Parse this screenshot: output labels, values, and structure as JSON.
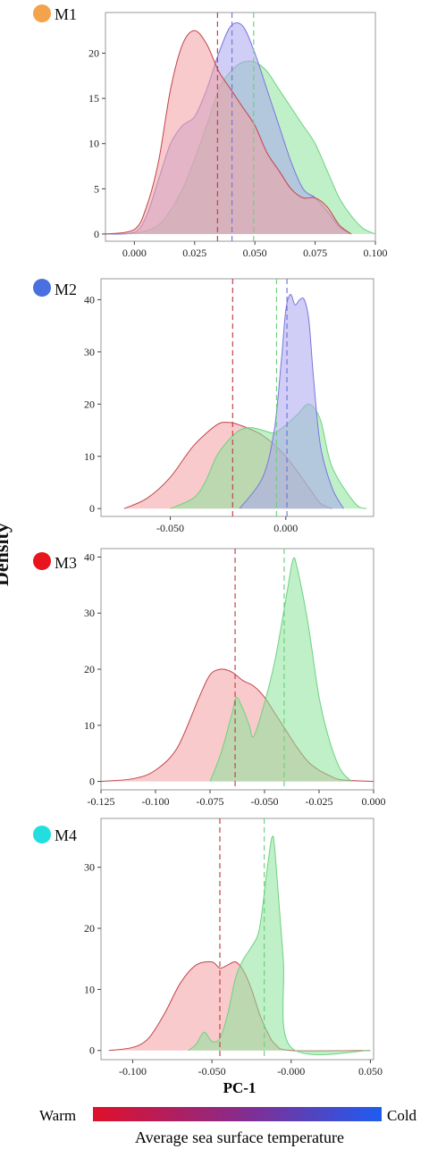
{
  "ylabel": "Density",
  "xlabel": "PC-1",
  "colorbar": {
    "warm_label": "Warm",
    "cold_label": "Cold",
    "title": "Average sea surface temperature",
    "colors": [
      "#e0102a",
      "#8a2a8a",
      "#1e5cf2"
    ]
  },
  "chart_data": [
    {
      "type": "area",
      "name": "M1",
      "marker_color": "#f4a24c",
      "xlim": [
        -0.012,
        0.1
      ],
      "ylim": [
        -0.8,
        24.5
      ],
      "xticks": [
        0.0,
        0.025,
        0.05,
        0.075,
        0.1
      ],
      "xtick_labels": [
        "0.000",
        "0.025",
        "0.050",
        "0.075",
        "0.100"
      ],
      "yticks": [
        0,
        5,
        10,
        15,
        20
      ],
      "yticklabels": [
        "0",
        "5",
        "10",
        "15",
        "20"
      ],
      "series": [
        {
          "name": "green",
          "color": "#8be39a",
          "edge": "#6fd180",
          "mean": 0.0495,
          "x": [
            -0.002,
            0.01,
            0.02,
            0.03,
            0.035,
            0.04,
            0.045,
            0.05,
            0.055,
            0.06,
            0.065,
            0.07,
            0.075,
            0.08,
            0.085,
            0.09,
            0.095,
            0.1
          ],
          "y": [
            0,
            1.0,
            5.0,
            12.0,
            16.0,
            18.0,
            19.0,
            19.0,
            18.0,
            16.0,
            14.0,
            12.0,
            10.0,
            7.0,
            4.0,
            2.0,
            0.6,
            0
          ]
        },
        {
          "name": "blue",
          "color": "#a9a5ef",
          "edge": "#7a76dd",
          "mean": 0.0405,
          "x": [
            -0.012,
            0.0,
            0.005,
            0.01,
            0.015,
            0.02,
            0.025,
            0.03,
            0.035,
            0.04,
            0.045,
            0.05,
            0.055,
            0.06,
            0.065,
            0.07,
            0.075,
            0.08,
            0.085,
            0.09
          ],
          "y": [
            0,
            0.2,
            2.0,
            6.0,
            10.0,
            12.0,
            13.0,
            16.0,
            20.0,
            23.0,
            23.0,
            20.0,
            16.0,
            12.0,
            8.0,
            5.0,
            4.0,
            2.5,
            0.8,
            0
          ]
        },
        {
          "name": "red",
          "color": "#f49ea0",
          "edge": "#c0444c",
          "mean": 0.0345,
          "x": [
            -0.012,
            0.0,
            0.005,
            0.01,
            0.015,
            0.02,
            0.025,
            0.03,
            0.035,
            0.04,
            0.045,
            0.05,
            0.055,
            0.06,
            0.065,
            0.07,
            0.075,
            0.08,
            0.085,
            0.09
          ],
          "y": [
            0,
            0.5,
            3.0,
            8.0,
            16.0,
            21.0,
            22.5,
            21.0,
            18.0,
            16.0,
            14.0,
            12.0,
            9.0,
            7.0,
            5.0,
            4.0,
            4.0,
            3.0,
            1.0,
            0
          ]
        }
      ]
    },
    {
      "type": "area",
      "name": "M2",
      "marker_color": "#4a6fe0",
      "xlim": [
        -0.08,
        0.038
      ],
      "ylim": [
        -1.5,
        44
      ],
      "xticks": [
        -0.05,
        0.0
      ],
      "xtick_labels": [
        "-0.050",
        "0.000"
      ],
      "yticks": [
        0,
        10,
        20,
        30,
        40
      ],
      "yticklabels": [
        "0",
        "10",
        "20",
        "30",
        "40"
      ],
      "series": [
        {
          "name": "red",
          "color": "#f49ea0",
          "edge": "#c0444c",
          "mean": -0.023,
          "x": [
            -0.07,
            -0.06,
            -0.05,
            -0.04,
            -0.03,
            -0.025,
            -0.02,
            -0.01,
            0.0,
            0.01,
            0.015,
            0.02
          ],
          "y": [
            0,
            2.0,
            6.0,
            12.0,
            16.0,
            16.5,
            16.0,
            14.0,
            10.0,
            4.0,
            1.0,
            0
          ]
        },
        {
          "name": "green",
          "color": "#8be39a",
          "edge": "#6fd180",
          "mean": -0.004,
          "x": [
            -0.05,
            -0.04,
            -0.035,
            -0.03,
            -0.025,
            -0.02,
            -0.015,
            -0.01,
            -0.005,
            0.0,
            0.005,
            0.01,
            0.015,
            0.02,
            0.03,
            0.035
          ],
          "y": [
            0,
            2.0,
            5.0,
            10.0,
            13.0,
            15.0,
            15.5,
            15.0,
            14.5,
            16.0,
            18.0,
            20.0,
            17.0,
            8.0,
            1.0,
            0
          ]
        },
        {
          "name": "blue",
          "color": "#a9a5ef",
          "edge": "#7a76dd",
          "mean": 0.0005,
          "x": [
            -0.02,
            -0.01,
            -0.005,
            -0.002,
            0.0,
            0.002,
            0.004,
            0.006,
            0.008,
            0.01,
            0.012,
            0.015,
            0.02,
            0.025
          ],
          "y": [
            0,
            6.0,
            15.0,
            28.0,
            38.0,
            41.0,
            39.0,
            40.0,
            40.0,
            36.0,
            25.0,
            12.0,
            4.0,
            0
          ]
        }
      ]
    },
    {
      "type": "area",
      "name": "M3",
      "marker_color": "#e8141e",
      "xlim": [
        -0.125,
        0.0
      ],
      "ylim": [
        -1.5,
        41.5
      ],
      "xticks": [
        -0.125,
        -0.1,
        -0.075,
        -0.05,
        -0.025,
        0.0
      ],
      "xtick_labels": [
        "-0.125",
        "-0.100",
        "-0.075",
        "-0.050",
        "-0.025",
        "0.000"
      ],
      "yticks": [
        0,
        10,
        20,
        30,
        40
      ],
      "yticklabels": [
        "0",
        "10",
        "20",
        "30",
        "40"
      ],
      "series": [
        {
          "name": "red",
          "color": "#f49ea0",
          "edge": "#c0444c",
          "mean": -0.0635,
          "x": [
            -0.125,
            -0.11,
            -0.1,
            -0.09,
            -0.08,
            -0.075,
            -0.07,
            -0.065,
            -0.06,
            -0.055,
            -0.05,
            -0.045,
            -0.04,
            -0.035,
            -0.03,
            -0.025,
            -0.02,
            -0.015,
            0.0
          ],
          "y": [
            0,
            0.5,
            2.0,
            6.0,
            15.0,
            19.0,
            20.0,
            19.5,
            18.0,
            17.0,
            15.0,
            12.0,
            9.0,
            6.0,
            3.5,
            2.0,
            1.0,
            0.3,
            0
          ]
        },
        {
          "name": "green",
          "color": "#8be39a",
          "edge": "#6fd180",
          "mean": -0.041,
          "x": [
            -0.075,
            -0.07,
            -0.065,
            -0.063,
            -0.06,
            -0.057,
            -0.055,
            -0.05,
            -0.045,
            -0.04,
            -0.037,
            -0.035,
            -0.03,
            -0.025,
            -0.02,
            -0.015,
            -0.01
          ],
          "y": [
            0,
            5.0,
            12.0,
            15.0,
            13.0,
            10.0,
            8.0,
            14.0,
            22.0,
            33.0,
            39.5,
            38.0,
            28.0,
            15.0,
            7.0,
            2.0,
            0
          ]
        }
      ]
    },
    {
      "type": "area",
      "name": "M4",
      "marker_color": "#22dede",
      "xlim": [
        -0.12,
        0.052
      ],
      "ylim": [
        -1.5,
        38
      ],
      "xticks": [
        -0.1,
        -0.05,
        0.0,
        0.05
      ],
      "xtick_labels": [
        "-0.100",
        "-0.050",
        "-0.000",
        "0.050"
      ],
      "yticks": [
        0,
        10,
        20,
        30
      ],
      "yticklabels": [
        "0",
        "10",
        "20",
        "30"
      ],
      "series": [
        {
          "name": "red",
          "color": "#f49ea0",
          "edge": "#c0444c",
          "mean": -0.045,
          "x": [
            -0.115,
            -0.1,
            -0.09,
            -0.08,
            -0.07,
            -0.06,
            -0.05,
            -0.045,
            -0.04,
            -0.035,
            -0.03,
            -0.025,
            -0.02,
            -0.015,
            -0.01,
            0.0,
            0.05
          ],
          "y": [
            0,
            0.5,
            2.0,
            6.0,
            11.0,
            14.0,
            14.5,
            13.5,
            14.0,
            14.5,
            13.0,
            10.0,
            6.0,
            3.0,
            1.0,
            0,
            0
          ]
        },
        {
          "name": "green",
          "color": "#8be39a",
          "edge": "#6fd180",
          "mean": -0.017,
          "x": [
            -0.065,
            -0.06,
            -0.055,
            -0.05,
            -0.045,
            -0.04,
            -0.035,
            -0.03,
            -0.025,
            -0.02,
            -0.015,
            -0.012,
            -0.01,
            -0.005,
            0.0,
            0.05
          ],
          "y": [
            0,
            1.0,
            3.0,
            1.5,
            2.0,
            6.0,
            12.0,
            15.0,
            17.0,
            20.0,
            30.0,
            35.0,
            32.0,
            15.0,
            0.5,
            0
          ]
        }
      ]
    }
  ]
}
